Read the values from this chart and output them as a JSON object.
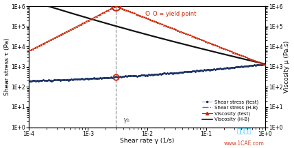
{
  "xlim": [
    0.0001,
    1.0
  ],
  "ylim_left": [
    1.0,
    1000000.0
  ],
  "ylim_right": [
    1.0,
    1000000.0
  ],
  "xlabel": "Shear rate γ (1/s)",
  "ylabel_left": "Shear stress τ (Pa)",
  "ylabel_right": "Viscosity μ (Pa.s)",
  "gamma_yield": 0.003,
  "eta_peak": 1000000.0,
  "tau_yield": 900.0,
  "background_color": "#ffffff",
  "color_shear_test": "#1a3060",
  "color_shear_HB": "#4472c4",
  "color_visc_test": "#cc2200",
  "color_visc_HB": "#111111",
  "annotation_gamma0": "γ₀",
  "watermark1": "仿真在线",
  "watermark2": "www.1CAE.com"
}
